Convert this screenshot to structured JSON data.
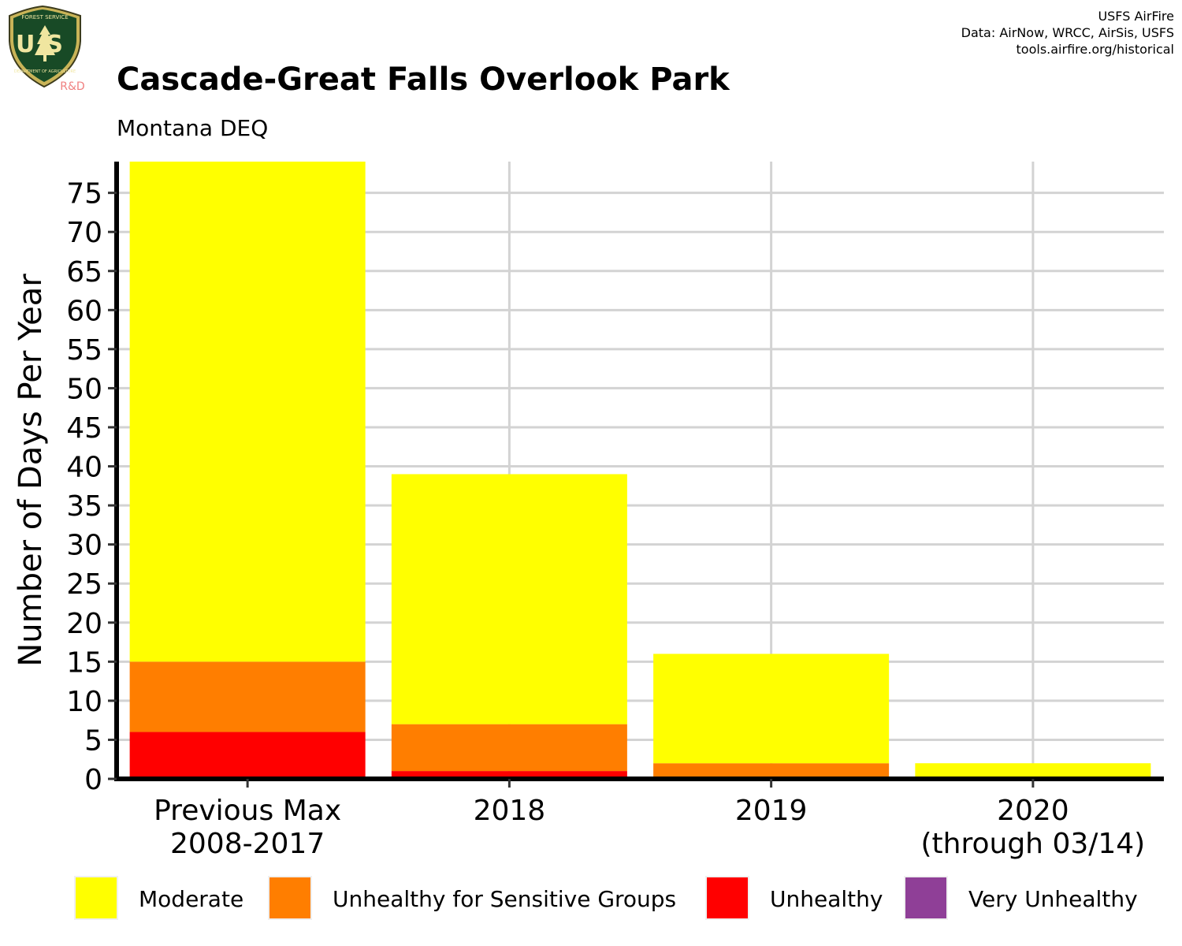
{
  "header": {
    "title": "Cascade-Great Falls Overlook Park",
    "subtitle": "Montana DEQ",
    "credits": [
      "USFS AirFire",
      "Data: AirNow, WRCC, AirSis, USFS",
      "tools.airfire.org/historical"
    ]
  },
  "logo": {
    "text_top": "FOREST SERVICE",
    "letters": "US",
    "text_bottom": "DEPARTMENT OF AGRICULTURE",
    "badge": "R&D"
  },
  "chart_data": {
    "type": "bar",
    "stacked": true,
    "ylabel": "Number of Days Per Year",
    "xlabel": "",
    "categories": [
      [
        "Previous Max",
        "2008-2017"
      ],
      [
        "2018"
      ],
      [
        "2019"
      ],
      [
        "2020",
        "(through 03/14)"
      ]
    ],
    "ylim": [
      0,
      79
    ],
    "yticks": [
      0,
      5,
      10,
      15,
      20,
      25,
      30,
      35,
      40,
      45,
      50,
      55,
      60,
      65,
      70,
      75
    ],
    "grid": true,
    "legend_position": "bottom",
    "series": [
      {
        "name": "Unhealthy",
        "color": "#ff0000",
        "values": [
          6,
          1,
          0,
          0
        ]
      },
      {
        "name": "Unhealthy for Sensitive Groups",
        "color": "#ff7e00",
        "values": [
          9,
          6,
          2,
          0
        ]
      },
      {
        "name": "Moderate",
        "color": "#ffff00",
        "values": [
          64,
          32,
          14,
          2
        ]
      },
      {
        "name": "Very Unhealthy",
        "color": "#8f3f97",
        "values": [
          0,
          0,
          0,
          0
        ]
      }
    ],
    "legend_order": [
      "Moderate",
      "Unhealthy for Sensitive Groups",
      "Unhealthy",
      "Very Unhealthy"
    ]
  }
}
